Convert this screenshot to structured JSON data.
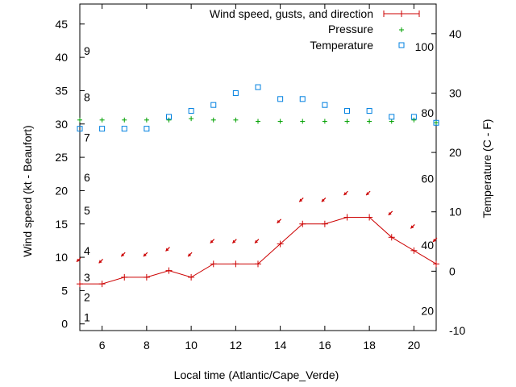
{
  "chart_data": {
    "type": "line",
    "xlabel": "Local time (Atlantic/Cape_Verde)",
    "ylabel": "Wind speed (kt - Beaufort)",
    "y2label": "Temperature (C - F)",
    "xlim": [
      5,
      21
    ],
    "ylim": [
      -1,
      48
    ],
    "y2lim": [
      -10,
      45
    ],
    "x_ticks": [
      6,
      8,
      10,
      12,
      14,
      16,
      18,
      20
    ],
    "y_ticks": [
      0,
      5,
      10,
      15,
      20,
      25,
      30,
      35,
      40,
      45
    ],
    "y2_ticks": [
      -10,
      0,
      10,
      20,
      30,
      40
    ],
    "beaufort_labels": [
      {
        "label": "1",
        "kt": 1
      },
      {
        "label": "2",
        "kt": 4
      },
      {
        "label": "3",
        "kt": 7
      },
      {
        "label": "4",
        "kt": 11
      },
      {
        "label": "5",
        "kt": 17
      },
      {
        "label": "6",
        "kt": 22
      },
      {
        "label": "7",
        "kt": 28
      },
      {
        "label": "8",
        "kt": 34
      },
      {
        "label": "9",
        "kt": 41
      }
    ],
    "fahrenheit_labels": [
      {
        "label": "20",
        "c": -6.7
      },
      {
        "label": "40",
        "c": 4.4
      },
      {
        "label": "60",
        "c": 15.6
      },
      {
        "label": "80",
        "c": 26.7
      },
      {
        "label": "100",
        "c": 37.8
      }
    ],
    "legend_position": "top-right",
    "colors": {
      "wind": "#cc0000",
      "pressure": "#00a000",
      "temperature": "#0080e0"
    },
    "series": [
      {
        "name": "Wind speed, gusts, and direction",
        "x": [
          5,
          6,
          7,
          8,
          9,
          10,
          11,
          12,
          13,
          14,
          15,
          16,
          17,
          18,
          19,
          20,
          21
        ],
        "values": [
          6,
          6,
          7,
          7,
          8,
          7,
          9,
          9,
          9,
          12,
          15,
          15,
          16,
          16,
          13,
          11,
          9
        ],
        "arrow_kt": [
          9.8,
          9.6,
          10.6,
          10.6,
          11.4,
          10.6,
          12.6,
          12.6,
          12.6,
          15.6,
          18.8,
          18.8,
          19.8,
          19.8,
          16.8,
          14.8,
          12.8
        ]
      },
      {
        "name": "Pressure",
        "axis": "left",
        "x": [
          5,
          6,
          7,
          8,
          9,
          10,
          11,
          12,
          13,
          14,
          15,
          16,
          17,
          18,
          19,
          20,
          21
        ],
        "values": [
          30.6,
          30.6,
          30.6,
          30.6,
          30.6,
          30.8,
          30.6,
          30.6,
          30.4,
          30.4,
          30.4,
          30.4,
          30.4,
          30.4,
          30.4,
          30.6,
          30.2
        ]
      },
      {
        "name": "Temperature",
        "axis": "right",
        "x": [
          5,
          6,
          7,
          8,
          9,
          10,
          11,
          12,
          13,
          14,
          15,
          16,
          17,
          18,
          19,
          20,
          21
        ],
        "values": [
          24,
          24,
          24,
          24,
          26,
          27,
          28,
          30,
          31,
          29,
          29,
          28,
          27,
          27,
          26,
          26,
          25
        ]
      }
    ]
  }
}
